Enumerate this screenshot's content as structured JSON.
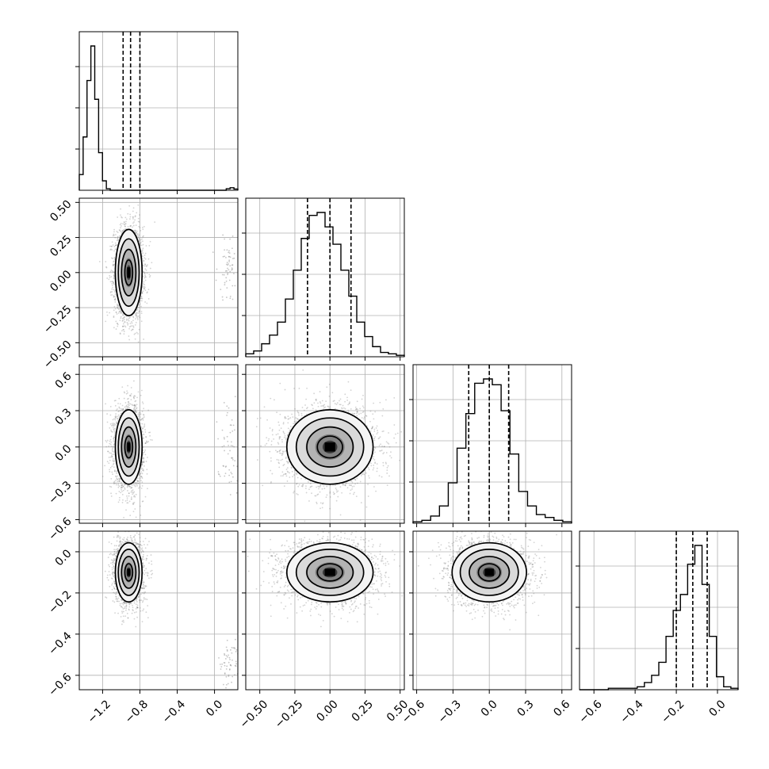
{
  "chart_data": {
    "type": "corner",
    "colors": {
      "line": "#000000",
      "grid": "#b0b0b0",
      "points": "#808080"
    },
    "grid": true,
    "title": "",
    "parameters": [
      {
        "index": 0,
        "range": [
          -1.45,
          0.25
        ],
        "ticks": [
          "-1.2",
          "-0.8",
          "-0.4",
          "0.0"
        ],
        "tick_values": [
          -1.2,
          -0.8,
          -0.4,
          0.0
        ],
        "quantiles": [
          -0.98,
          -0.9,
          -0.8
        ],
        "histogram": [
          0.5,
          1.7,
          3.5,
          4.6,
          2.9,
          1.2,
          0.3,
          0.05,
          0,
          0,
          0,
          0,
          0,
          0,
          0,
          0,
          0,
          0,
          0,
          0,
          0,
          0,
          0,
          0,
          0,
          0,
          0,
          0,
          0,
          0,
          0,
          0,
          0,
          0,
          0,
          0,
          0,
          0,
          0.05,
          0.08,
          0.04
        ]
      },
      {
        "index": 1,
        "range": [
          -0.6,
          0.53
        ],
        "ticks": [
          "-0.50",
          "-0.25",
          "0.00",
          "0.25",
          "0.50"
        ],
        "tick_values": [
          -0.5,
          -0.25,
          0,
          0.25,
          0.5
        ],
        "quantiles": [
          -0.16,
          0.0,
          0.15
        ],
        "histogram": [
          0.02,
          0.04,
          0.09,
          0.15,
          0.24,
          0.4,
          0.6,
          0.82,
          0.98,
          1.0,
          0.9,
          0.78,
          0.6,
          0.42,
          0.24,
          0.14,
          0.07,
          0.03,
          0.02,
          0.01
        ]
      },
      {
        "index": 2,
        "range": [
          -0.63,
          0.68
        ],
        "ticks": [
          "-0.6",
          "-0.3",
          "0.0",
          "0.3",
          "0.6"
        ],
        "tick_values": [
          -0.6,
          -0.3,
          0,
          0.3,
          0.6
        ],
        "quantiles": [
          -0.17,
          0.0,
          0.16
        ],
        "histogram": [
          0.01,
          0.02,
          0.05,
          0.12,
          0.28,
          0.52,
          0.76,
          0.97,
          1.0,
          0.96,
          0.78,
          0.48,
          0.22,
          0.12,
          0.06,
          0.04,
          0.02,
          0.01
        ]
      },
      {
        "index": 3,
        "range": [
          -0.67,
          0.1
        ],
        "ticks": [
          "-0.6",
          "-0.4",
          "-0.2",
          "0.0"
        ],
        "tick_values": [
          -0.6,
          -0.4,
          -0.2,
          0
        ],
        "quantiles": [
          -0.2,
          -0.12,
          -0.05
        ],
        "histogram": [
          0,
          0,
          0,
          0,
          0.01,
          0.01,
          0.01,
          0.01,
          0.02,
          0.05,
          0.1,
          0.19,
          0.37,
          0.55,
          0.66,
          0.87,
          1.0,
          0.73,
          0.37,
          0.09,
          0.02,
          0.01
        ]
      }
    ],
    "pairs": [
      {
        "x": 0,
        "y": 1,
        "center": [
          -0.92,
          0.0
        ],
        "sigma": [
          0.07,
          0.15
        ],
        "outlier": [
          0.15,
          0.05,
          0.06,
          0.12
        ]
      },
      {
        "x": 0,
        "y": 2,
        "center": [
          -0.92,
          0.0
        ],
        "sigma": [
          0.07,
          0.15
        ],
        "outlier": [
          0.15,
          0.0,
          0.06,
          0.18
        ]
      },
      {
        "x": 0,
        "y": 3,
        "center": [
          -0.92,
          -0.1
        ],
        "sigma": [
          0.07,
          0.07
        ],
        "outlier": [
          0.15,
          -0.55,
          0.06,
          0.06
        ]
      },
      {
        "x": 1,
        "y": 2,
        "center": [
          0.0,
          0.0
        ],
        "sigma": [
          0.15,
          0.15
        ]
      },
      {
        "x": 1,
        "y": 3,
        "center": [
          0.0,
          -0.1
        ],
        "sigma": [
          0.15,
          0.07
        ]
      },
      {
        "x": 2,
        "y": 3,
        "center": [
          0.0,
          -0.1
        ],
        "sigma": [
          0.15,
          0.07
        ]
      }
    ],
    "y_tick_labels": {
      "1": [
        "0.50",
        "0.25",
        "0.00",
        "-0.25",
        "-0.50"
      ],
      "2": [
        "0.6",
        "0.3",
        "0.0",
        "-0.3",
        "-0.6"
      ],
      "3": [
        "0.0",
        "-0.2",
        "-0.4",
        "-0.6"
      ]
    }
  }
}
